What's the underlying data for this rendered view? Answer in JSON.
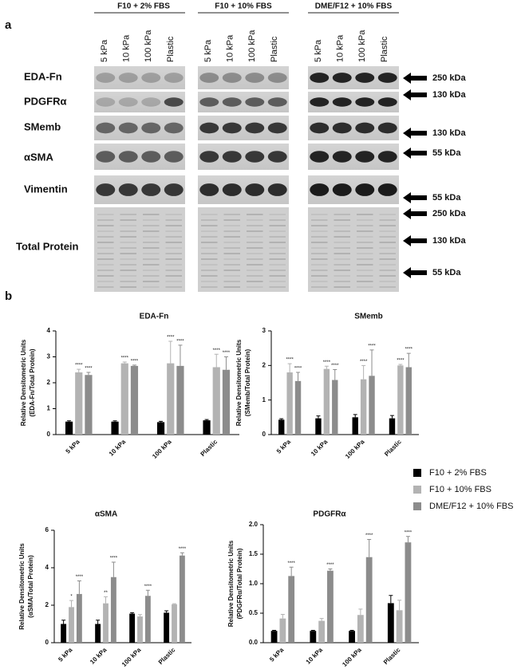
{
  "panel_labels": [
    "a",
    "b"
  ],
  "blot": {
    "conditions": [
      "F10 + 2% FBS",
      "F10 + 10% FBS",
      "DME/F12 + 10% FBS"
    ],
    "lanes": [
      "5 kPa",
      "10 kPa",
      "100 kPa",
      "Plastic"
    ],
    "rows": [
      "EDA-Fn",
      "PDGFRα",
      "SMemb",
      "αSMA",
      "Vimentin",
      "Total Protein"
    ],
    "markers": [
      "250 kDa",
      "130 kDa",
      "130 kDa",
      "55 kDa",
      "55 kDa",
      "250 kDa",
      "130 kDa",
      "55 kDa"
    ]
  },
  "chart_data": [
    {
      "type": "bar",
      "title": "EDA-Fn",
      "ylabel": [
        "Relative Densitometric Units",
        "(EDA-Fn/Total Protein)"
      ],
      "categories": [
        "5 kPa",
        "10 kPa",
        "100 kPa",
        "Plastic"
      ],
      "ylim": [
        0,
        4
      ],
      "yticks": [
        0,
        1,
        2,
        3,
        4
      ],
      "series": [
        {
          "name": "F10 + 2% FBS",
          "color": "#000000",
          "values": [
            0.5,
            0.5,
            0.48,
            0.55
          ],
          "errors": [
            0.03,
            0.03,
            0.03,
            0.03
          ]
        },
        {
          "name": "F10 + 10% FBS",
          "color": "#b3b3b3",
          "values": [
            2.4,
            2.75,
            2.75,
            2.6
          ],
          "errors": [
            0.12,
            0.05,
            0.85,
            0.5
          ],
          "annotations": [
            "****",
            "****",
            "****",
            "****"
          ]
        },
        {
          "name": "DME/F12 + 10% FBS",
          "color": "#8c8c8c",
          "values": [
            2.3,
            2.65,
            2.65,
            2.5
          ],
          "errors": [
            0.1,
            0.03,
            0.8,
            0.5
          ],
          "annotations": [
            "****",
            "****",
            "****",
            "****"
          ]
        }
      ]
    },
    {
      "type": "bar",
      "title": "SMemb",
      "ylabel": [
        "Relative Densitometric Units",
        "(SMemb/Total Protein)"
      ],
      "categories": [
        "5 kPa",
        "10 kPa",
        "100 kPa",
        "Plastic"
      ],
      "ylim": [
        0,
        3
      ],
      "yticks": [
        0,
        1,
        2,
        3
      ],
      "series": [
        {
          "color": "#000000",
          "values": [
            0.43,
            0.47,
            0.5,
            0.47
          ],
          "errors": [
            0.03,
            0.07,
            0.08,
            0.08
          ]
        },
        {
          "color": "#b3b3b3",
          "values": [
            1.8,
            1.9,
            1.6,
            2.0
          ],
          "errors": [
            0.25,
            0.08,
            0.4,
            0.03
          ],
          "annotations": [
            "****",
            "****",
            "****",
            "****"
          ]
        },
        {
          "color": "#8c8c8c",
          "values": [
            1.55,
            1.58,
            1.7,
            1.95
          ],
          "errors": [
            0.25,
            0.3,
            0.75,
            0.4
          ],
          "annotations": [
            "****",
            "****",
            "****",
            "****"
          ]
        }
      ]
    },
    {
      "type": "bar",
      "title": "αSMA",
      "ylabel": [
        "Relative Densitometric Units",
        "(αSMA/Total Protein)"
      ],
      "categories": [
        "5 kPa",
        "10 kPa",
        "100 kPa",
        "Plastic"
      ],
      "ylim": [
        0,
        6
      ],
      "yticks": [
        0,
        2,
        4,
        6
      ],
      "series": [
        {
          "color": "#000000",
          "values": [
            1.0,
            1.0,
            1.55,
            1.6
          ],
          "errors": [
            0.2,
            0.2,
            0.05,
            0.1
          ]
        },
        {
          "color": "#b3b3b3",
          "values": [
            1.9,
            2.1,
            1.4,
            2.05
          ],
          "errors": [
            0.35,
            0.35,
            0.1,
            0.03
          ],
          "annotations": [
            "*",
            "**",
            null,
            null
          ]
        },
        {
          "color": "#8c8c8c",
          "values": [
            2.6,
            3.5,
            2.5,
            4.65
          ],
          "errors": [
            0.7,
            0.8,
            0.3,
            0.15
          ],
          "annotations": [
            "****",
            "****",
            "****",
            "****"
          ]
        }
      ]
    },
    {
      "type": "bar",
      "title": "PDGFRα",
      "ylabel": [
        "Relative Densitometric Units",
        "(PDGFRα/Total Protein)"
      ],
      "categories": [
        "5 kPa",
        "10 kPa",
        "100 kPa",
        "Plastic"
      ],
      "ylim": [
        0,
        2
      ],
      "yticks": [
        {
          "value": 0,
          "label": "0.0"
        },
        0.5,
        {
          "value": 1,
          "label": "1.0"
        },
        1.5,
        {
          "value": 2,
          "label": "2.0"
        }
      ],
      "series": [
        {
          "color": "#000000",
          "values": [
            0.2,
            0.2,
            0.2,
            0.67
          ],
          "errors": [
            0.01,
            0.01,
            0.01,
            0.13
          ]
        },
        {
          "color": "#b3b3b3",
          "values": [
            0.41,
            0.37,
            0.47,
            0.55
          ],
          "errors": [
            0.07,
            0.04,
            0.1,
            0.17
          ]
        },
        {
          "color": "#8c8c8c",
          "values": [
            1.13,
            1.22,
            1.45,
            1.7
          ],
          "errors": [
            0.15,
            0.03,
            0.3,
            0.1
          ],
          "annotations": [
            "****",
            "****",
            "****",
            "****"
          ]
        }
      ]
    }
  ]
}
